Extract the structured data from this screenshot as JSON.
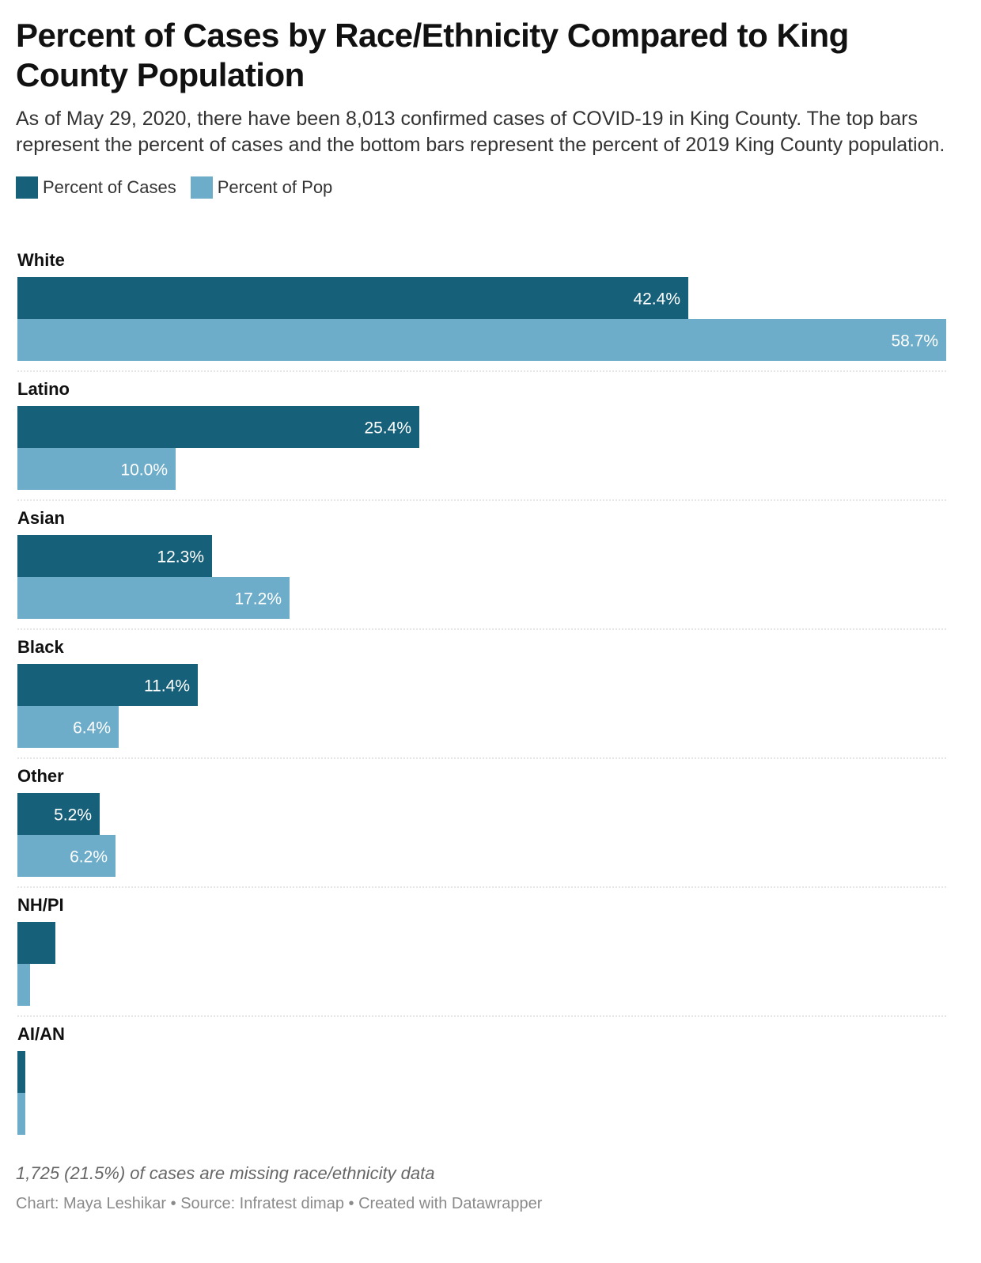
{
  "title": "Percent of Cases by Race/Ethnicity Compared to King County Population",
  "description": "As of May 29, 2020, there have been 8,013 confirmed cases of COVID-19 in King County. The top bars represent the percent of cases and the bottom bars represent the percent of 2019 King County population.",
  "notes": "1,725 (21.5%) of cases are missing race/ethnicity data",
  "byline": "Chart: Maya Leshikar • Source: Infratest dimap • Created with Datawrapper",
  "colors": {
    "cases": "#176079",
    "pop": "#6eadc9",
    "grid": "#cccccc"
  },
  "chart_data": {
    "type": "bar",
    "orientation": "horizontal",
    "categories": [
      "White",
      "Latino",
      "Asian",
      "Black",
      "Other",
      "NH/PI",
      "AI/AN"
    ],
    "series": [
      {
        "name": "Percent of Cases",
        "values": [
          42.4,
          25.4,
          12.3,
          11.4,
          5.2,
          2.4,
          0.5
        ],
        "labels": [
          "42.4%",
          "25.4%",
          "12.3%",
          "11.4%",
          "5.2%",
          "",
          ""
        ]
      },
      {
        "name": "Percent of Pop",
        "values": [
          58.7,
          10.0,
          17.2,
          6.4,
          6.2,
          0.8,
          0.5
        ],
        "labels": [
          "58.7%",
          "10.0%",
          "17.2%",
          "6.4%",
          "6.2%",
          "",
          ""
        ]
      }
    ],
    "xlim": [
      0,
      58.7
    ],
    "legend_position": "top-left"
  }
}
